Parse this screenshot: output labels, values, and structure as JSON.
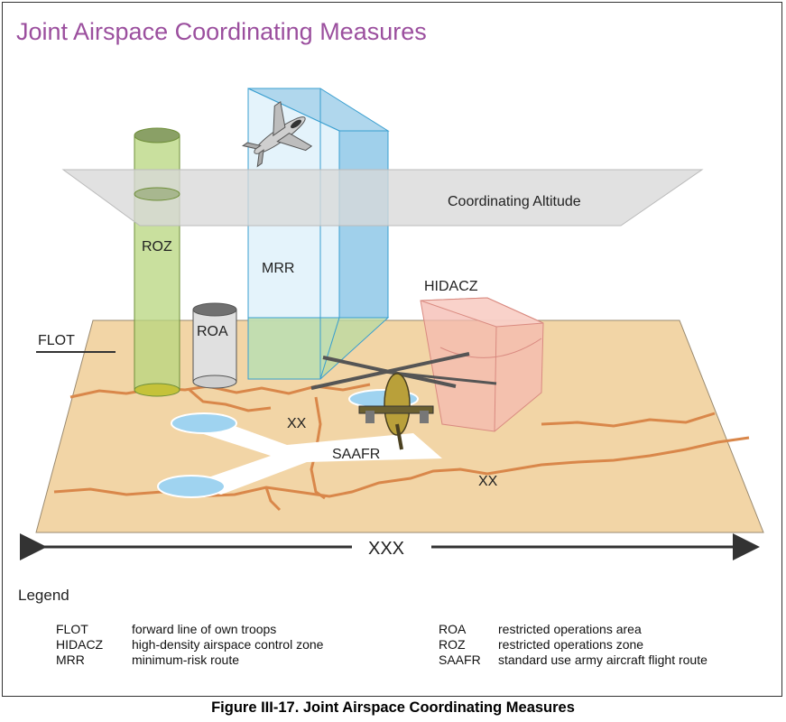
{
  "title": "Joint Airspace Coordinating Measures",
  "diagram_labels": {
    "coordinating_altitude": "Coordinating Altitude",
    "roz": "ROZ",
    "mrr": "MRR",
    "roa": "ROA",
    "hidacz": "HIDACZ",
    "flot": "FLOT",
    "saafr": "SAAFR",
    "xx_upper": "XX",
    "xx_lower": "XX",
    "xxx": "XXX"
  },
  "colors": {
    "title": "#9b4f9e",
    "terrain": "#f2d5a6",
    "boundary": "#d9874a",
    "roz": "#b7d67e",
    "mrr": "#8fc8e8",
    "hidacz": "#f4b9b0",
    "roa": "#dcdcdc",
    "coord_plane": "#dcdcdc",
    "water": "#9fd3f0"
  },
  "legend": {
    "title": "Legend",
    "left": [
      {
        "abbr": "FLOT",
        "desc": "forward line of own troops"
      },
      {
        "abbr": "HIDACZ",
        "desc": "high-density airspace control zone"
      },
      {
        "abbr": "MRR",
        "desc": "minimum-risk route"
      }
    ],
    "right": [
      {
        "abbr": "ROA",
        "desc": "restricted operations area"
      },
      {
        "abbr": "ROZ",
        "desc": "restricted operations zone"
      },
      {
        "abbr": "SAAFR",
        "desc": "standard use army aircraft flight route"
      }
    ]
  },
  "caption": "Figure III-17.  Joint Airspace Coordinating Measures"
}
